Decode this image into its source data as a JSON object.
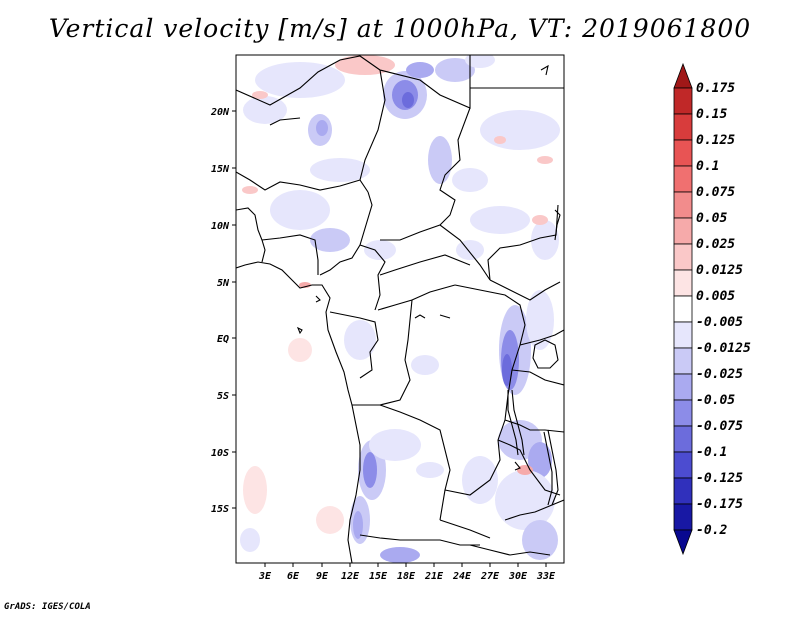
{
  "title": "Vertical velocity [m/s] at 1000hPa, VT: 2019061800",
  "footer": "GrADS: IGES/COLA",
  "map": {
    "lat_labels": [
      "20N",
      "15N",
      "10N",
      "5N",
      "EQ",
      "5S",
      "10S",
      "15S"
    ],
    "lon_labels": [
      "3E",
      "6E",
      "9E",
      "12E",
      "15E",
      "18E",
      "21E",
      "24E",
      "27E",
      "30E",
      "33E"
    ]
  },
  "colorbar": {
    "levels": [
      "0.175",
      "0.15",
      "0.125",
      "0.1",
      "0.075",
      "0.05",
      "0.025",
      "0.0125",
      "0.005",
      "-0.005",
      "-0.0125",
      "-0.025",
      "-0.05",
      "-0.075",
      "-0.1",
      "-0.125",
      "-0.175",
      "-0.2"
    ],
    "colors": [
      "#a01818",
      "#c02828",
      "#d83c3c",
      "#e85454",
      "#f07070",
      "#f28c8c",
      "#f6aaaa",
      "#fac8c8",
      "#fde4e4",
      "#ffffff",
      "#e6e6fc",
      "#cacaf6",
      "#aaaaf0",
      "#8c8ce8",
      "#6c6cdc",
      "#4c4cd0",
      "#3030bc",
      "#1818a4",
      "#080890"
    ]
  }
}
